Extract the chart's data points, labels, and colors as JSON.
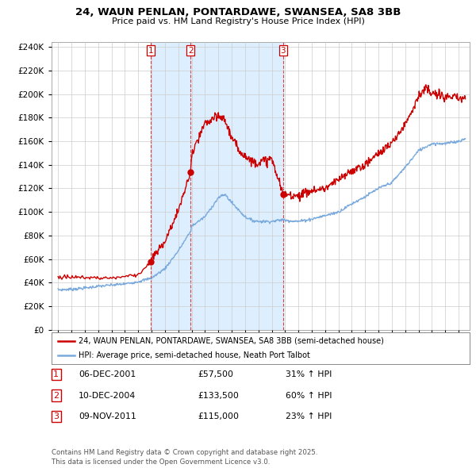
{
  "title_line1": "24, WAUN PENLAN, PONTARDAWE, SWANSEA, SA8 3BB",
  "title_line2": "Price paid vs. HM Land Registry's House Price Index (HPI)",
  "ytick_values": [
    0,
    20000,
    40000,
    60000,
    80000,
    100000,
    120000,
    140000,
    160000,
    180000,
    200000,
    220000,
    240000
  ],
  "legend_house": "24, WAUN PENLAN, PONTARDAWE, SWANSEA, SA8 3BB (semi-detached house)",
  "legend_hpi": "HPI: Average price, semi-detached house, Neath Port Talbot",
  "house_color": "#cc0000",
  "hpi_color": "#7aaadd",
  "shade_color": "#ddeeff",
  "transactions": [
    {
      "label": "1",
      "date": "06-DEC-2001",
      "price": 57500,
      "pct": "31%",
      "dir": "↑",
      "x_year": 2001.92
    },
    {
      "label": "2",
      "date": "10-DEC-2004",
      "price": 133500,
      "pct": "60%",
      "dir": "↑",
      "x_year": 2004.92
    },
    {
      "label": "3",
      "date": "09-NOV-2011",
      "price": 115000,
      "pct": "23%",
      "dir": "↑",
      "x_year": 2011.85
    }
  ],
  "footer": "Contains HM Land Registry data © Crown copyright and database right 2025.\nThis data is licensed under the Open Government Licence v3.0.",
  "bg_color": "#ffffff",
  "grid_color": "#cccccc",
  "xlim_min": 1994.5,
  "xlim_max": 2025.8,
  "ylim_min": 0,
  "ylim_max": 244000,
  "hpi_anchors_x": [
    1995,
    1996,
    1997,
    1998,
    1999,
    2000,
    2001,
    2002,
    2003,
    2004,
    2004.92,
    2005,
    2006,
    2007,
    2007.5,
    2008,
    2008.5,
    2009,
    2009.5,
    2010,
    2011,
    2011.85,
    2012,
    2013,
    2014,
    2015,
    2016,
    2017,
    2018,
    2019,
    2020,
    2021,
    2022,
    2023,
    2024,
    2025,
    2025.5
  ],
  "hpi_anchors_y": [
    34000,
    34500,
    35500,
    37000,
    38000,
    39000,
    41000,
    44000,
    52000,
    67000,
    83500,
    88000,
    96000,
    112000,
    115000,
    108000,
    102000,
    96000,
    93000,
    92000,
    92000,
    93500,
    93000,
    92000,
    94000,
    97000,
    100000,
    107000,
    113000,
    120000,
    125000,
    138000,
    152000,
    158000,
    158000,
    160000,
    162000
  ],
  "house_anchors_before1": {
    "x": [
      1995,
      1999,
      2000,
      2001,
      2001.92
    ],
    "y": [
      45000,
      44000,
      45500,
      47000,
      57500
    ]
  },
  "house_anchors_seg2": {
    "x": [
      2001.92,
      2002,
      2003,
      2004,
      2004.92
    ],
    "y": [
      57500,
      60000,
      75000,
      101000,
      133500
    ]
  },
  "house_anchors_seg3": {
    "x": [
      2004.92,
      2005,
      2006,
      2007,
      2007.5,
      2008,
      2008.5,
      2009,
      2009.5,
      2010,
      2011,
      2011.85
    ],
    "y": [
      133500,
      148000,
      175000,
      181000,
      178000,
      163000,
      153000,
      148000,
      143000,
      142000,
      145000,
      115000
    ]
  },
  "house_anchors_seg4": {
    "x": [
      2011.85,
      2012,
      2013,
      2014,
      2015,
      2016,
      2017,
      2018,
      2019,
      2020,
      2021,
      2022,
      2022.5,
      2023,
      2024,
      2025,
      2025.5
    ],
    "y": [
      115000,
      115000,
      114000,
      118000,
      120000,
      127000,
      135000,
      140000,
      150000,
      158000,
      175000,
      198000,
      205000,
      200000,
      198000,
      196000,
      196000
    ]
  }
}
